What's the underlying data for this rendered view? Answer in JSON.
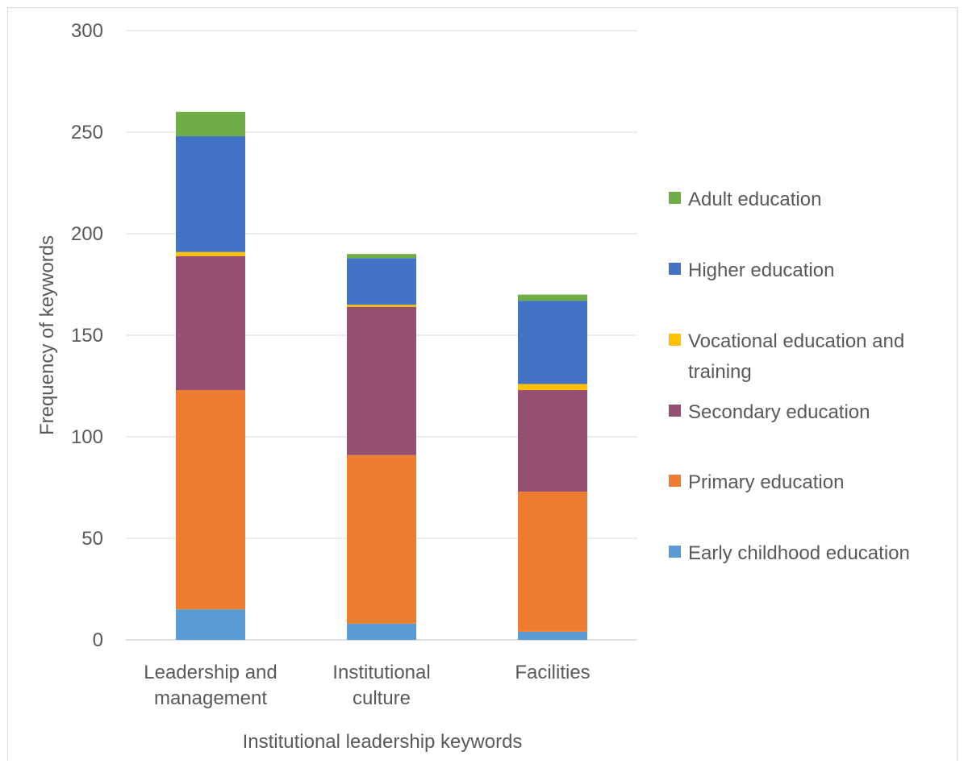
{
  "chart_data": {
    "type": "bar",
    "stacked": true,
    "categories": [
      [
        "Leadership and",
        "management"
      ],
      [
        "Institutional",
        "culture"
      ],
      [
        "Facilities"
      ]
    ],
    "series": [
      {
        "name": "Early childhood education",
        "color": "#5b9bd5",
        "values": [
          15,
          8,
          4
        ]
      },
      {
        "name": "Primary education",
        "color": "#ed7d31",
        "values": [
          108,
          83,
          69
        ]
      },
      {
        "name": "Secondary education",
        "color": "#954f72",
        "values": [
          66,
          73,
          50
        ]
      },
      {
        "name": "Vocational education and training",
        "color": "#ffc000",
        "values": [
          2,
          1,
          3
        ]
      },
      {
        "name": "Higher education",
        "color": "#4472c4",
        "values": [
          57,
          23,
          41
        ]
      },
      {
        "name": "Adult education",
        "color": "#70ad47",
        "values": [
          12,
          2,
          3
        ]
      }
    ],
    "legend_order": [
      5,
      4,
      3,
      2,
      1,
      0
    ],
    "legend_position": "right",
    "ylim": [
      0,
      300
    ],
    "yticks": [
      0,
      50,
      100,
      150,
      200,
      250,
      300
    ],
    "xlabel": "Institutional leadership keywords",
    "ylabel": "Frequency of keywords",
    "grid": true
  }
}
